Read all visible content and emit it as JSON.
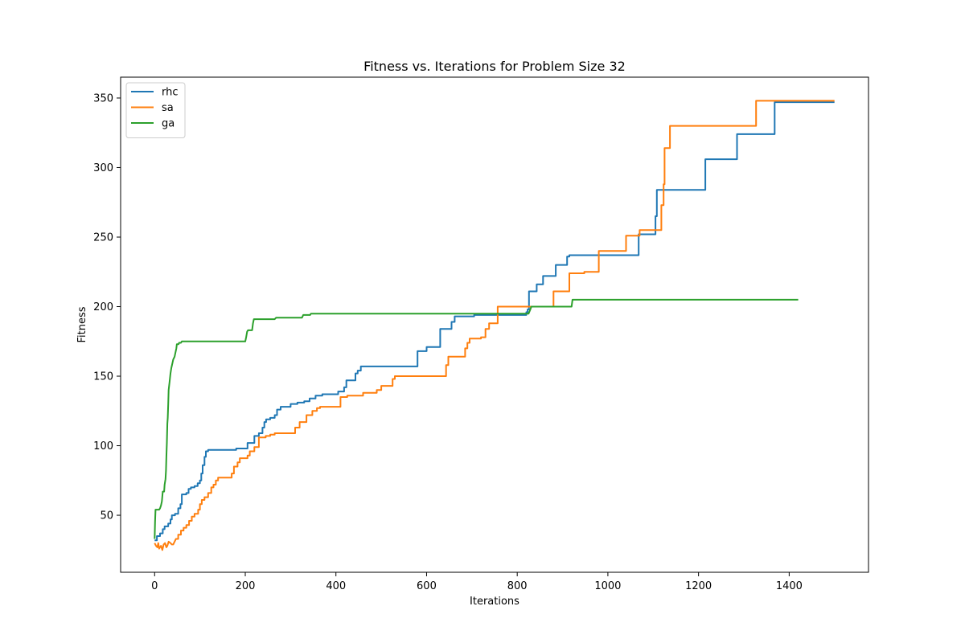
{
  "chart_data": {
    "type": "line",
    "title": "Fitness vs. Iterations for Problem Size 32",
    "xlabel": "Iterations",
    "ylabel": "Fitness",
    "xlim": [
      -75,
      1575
    ],
    "ylim": [
      9,
      365
    ],
    "xticks": [
      0,
      200,
      400,
      600,
      800,
      1000,
      1200,
      1400
    ],
    "yticks": [
      50,
      100,
      150,
      200,
      250,
      300,
      350
    ],
    "grid": false,
    "legend_position": "top-left",
    "series": [
      {
        "name": "rhc",
        "color": "#1f77b4",
        "points": [
          [
            0,
            32
          ],
          [
            5,
            32
          ],
          [
            5,
            35
          ],
          [
            12,
            35
          ],
          [
            12,
            37
          ],
          [
            18,
            37
          ],
          [
            18,
            40
          ],
          [
            22,
            40
          ],
          [
            22,
            42
          ],
          [
            30,
            42
          ],
          [
            30,
            44
          ],
          [
            35,
            44
          ],
          [
            35,
            47
          ],
          [
            38,
            47
          ],
          [
            38,
            50
          ],
          [
            45,
            50
          ],
          [
            45,
            51
          ],
          [
            52,
            51
          ],
          [
            52,
            55
          ],
          [
            57,
            55
          ],
          [
            57,
            58
          ],
          [
            60,
            58
          ],
          [
            60,
            65
          ],
          [
            70,
            65
          ],
          [
            70,
            66
          ],
          [
            75,
            66
          ],
          [
            75,
            69
          ],
          [
            80,
            69
          ],
          [
            80,
            70
          ],
          [
            88,
            70
          ],
          [
            88,
            71
          ],
          [
            95,
            71
          ],
          [
            95,
            73
          ],
          [
            100,
            73
          ],
          [
            100,
            75
          ],
          [
            103,
            75
          ],
          [
            103,
            80
          ],
          [
            106,
            80
          ],
          [
            106,
            86
          ],
          [
            110,
            86
          ],
          [
            110,
            92
          ],
          [
            113,
            92
          ],
          [
            113,
            96
          ],
          [
            118,
            96
          ],
          [
            118,
            97
          ],
          [
            180,
            97
          ],
          [
            180,
            98
          ],
          [
            205,
            98
          ],
          [
            205,
            102
          ],
          [
            220,
            102
          ],
          [
            220,
            107
          ],
          [
            230,
            107
          ],
          [
            230,
            109
          ],
          [
            238,
            109
          ],
          [
            238,
            113
          ],
          [
            242,
            113
          ],
          [
            242,
            117
          ],
          [
            246,
            117
          ],
          [
            246,
            119
          ],
          [
            255,
            119
          ],
          [
            255,
            120
          ],
          [
            265,
            120
          ],
          [
            265,
            122
          ],
          [
            270,
            122
          ],
          [
            270,
            126
          ],
          [
            278,
            126
          ],
          [
            278,
            128
          ],
          [
            300,
            128
          ],
          [
            300,
            130
          ],
          [
            315,
            130
          ],
          [
            315,
            131
          ],
          [
            330,
            131
          ],
          [
            330,
            132
          ],
          [
            342,
            132
          ],
          [
            342,
            134
          ],
          [
            355,
            134
          ],
          [
            355,
            136
          ],
          [
            370,
            136
          ],
          [
            370,
            137
          ],
          [
            405,
            137
          ],
          [
            405,
            139
          ],
          [
            418,
            139
          ],
          [
            418,
            142
          ],
          [
            423,
            142
          ],
          [
            423,
            147
          ],
          [
            443,
            147
          ],
          [
            443,
            152
          ],
          [
            448,
            152
          ],
          [
            448,
            154
          ],
          [
            455,
            154
          ],
          [
            455,
            157
          ],
          [
            580,
            157
          ],
          [
            580,
            168
          ],
          [
            600,
            168
          ],
          [
            600,
            171
          ],
          [
            630,
            171
          ],
          [
            630,
            184
          ],
          [
            655,
            184
          ],
          [
            655,
            189
          ],
          [
            662,
            189
          ],
          [
            662,
            193
          ],
          [
            705,
            193
          ],
          [
            705,
            194
          ],
          [
            820,
            194
          ],
          [
            820,
            196
          ],
          [
            823,
            196
          ],
          [
            823,
            198
          ],
          [
            826,
            198
          ],
          [
            826,
            211
          ],
          [
            843,
            211
          ],
          [
            843,
            216
          ],
          [
            857,
            216
          ],
          [
            857,
            222
          ],
          [
            885,
            222
          ],
          [
            885,
            230
          ],
          [
            910,
            230
          ],
          [
            910,
            236
          ],
          [
            915,
            236
          ],
          [
            915,
            237
          ],
          [
            1068,
            237
          ],
          [
            1068,
            252
          ],
          [
            1105,
            252
          ],
          [
            1105,
            265
          ],
          [
            1108,
            265
          ],
          [
            1108,
            284
          ],
          [
            1215,
            284
          ],
          [
            1215,
            306
          ],
          [
            1285,
            306
          ],
          [
            1285,
            324
          ],
          [
            1368,
            324
          ],
          [
            1368,
            347
          ],
          [
            1500,
            347
          ]
        ]
      },
      {
        "name": "sa",
        "color": "#ff7f0e",
        "points": [
          [
            0,
            30
          ],
          [
            3,
            28
          ],
          [
            6,
            27
          ],
          [
            8,
            30
          ],
          [
            10,
            26
          ],
          [
            14,
            28
          ],
          [
            17,
            25
          ],
          [
            20,
            29
          ],
          [
            23,
            30
          ],
          [
            26,
            27
          ],
          [
            28,
            28
          ],
          [
            31,
            31
          ],
          [
            35,
            30
          ],
          [
            38,
            29
          ],
          [
            41,
            29
          ],
          [
            44,
            31
          ],
          [
            47,
            33
          ],
          [
            52,
            33
          ],
          [
            52,
            36
          ],
          [
            58,
            36
          ],
          [
            58,
            39
          ],
          [
            64,
            39
          ],
          [
            64,
            41
          ],
          [
            70,
            41
          ],
          [
            70,
            43
          ],
          [
            76,
            43
          ],
          [
            76,
            46
          ],
          [
            82,
            46
          ],
          [
            82,
            49
          ],
          [
            88,
            49
          ],
          [
            88,
            51
          ],
          [
            96,
            51
          ],
          [
            96,
            54
          ],
          [
            100,
            54
          ],
          [
            100,
            58
          ],
          [
            104,
            58
          ],
          [
            104,
            61
          ],
          [
            110,
            61
          ],
          [
            110,
            63
          ],
          [
            118,
            63
          ],
          [
            118,
            66
          ],
          [
            125,
            66
          ],
          [
            125,
            70
          ],
          [
            130,
            70
          ],
          [
            130,
            72
          ],
          [
            135,
            72
          ],
          [
            135,
            75
          ],
          [
            140,
            75
          ],
          [
            140,
            77
          ],
          [
            170,
            77
          ],
          [
            170,
            80
          ],
          [
            175,
            80
          ],
          [
            175,
            85
          ],
          [
            183,
            85
          ],
          [
            183,
            88
          ],
          [
            188,
            88
          ],
          [
            188,
            91
          ],
          [
            205,
            91
          ],
          [
            205,
            93
          ],
          [
            210,
            93
          ],
          [
            210,
            96
          ],
          [
            220,
            96
          ],
          [
            220,
            99
          ],
          [
            230,
            99
          ],
          [
            230,
            106
          ],
          [
            245,
            106
          ],
          [
            245,
            107
          ],
          [
            255,
            107
          ],
          [
            255,
            108
          ],
          [
            265,
            108
          ],
          [
            265,
            109
          ],
          [
            310,
            109
          ],
          [
            310,
            113
          ],
          [
            320,
            113
          ],
          [
            320,
            117
          ],
          [
            335,
            117
          ],
          [
            335,
            122
          ],
          [
            348,
            122
          ],
          [
            348,
            125
          ],
          [
            358,
            125
          ],
          [
            358,
            127
          ],
          [
            365,
            127
          ],
          [
            365,
            128
          ],
          [
            410,
            128
          ],
          [
            410,
            135
          ],
          [
            425,
            135
          ],
          [
            425,
            136
          ],
          [
            460,
            136
          ],
          [
            460,
            138
          ],
          [
            490,
            138
          ],
          [
            490,
            140
          ],
          [
            500,
            140
          ],
          [
            500,
            143
          ],
          [
            525,
            143
          ],
          [
            525,
            148
          ],
          [
            530,
            148
          ],
          [
            530,
            150
          ],
          [
            643,
            150
          ],
          [
            643,
            158
          ],
          [
            648,
            158
          ],
          [
            648,
            164
          ],
          [
            685,
            164
          ],
          [
            685,
            170
          ],
          [
            690,
            170
          ],
          [
            690,
            174
          ],
          [
            695,
            174
          ],
          [
            695,
            177
          ],
          [
            720,
            177
          ],
          [
            720,
            178
          ],
          [
            730,
            178
          ],
          [
            730,
            184
          ],
          [
            738,
            184
          ],
          [
            738,
            188
          ],
          [
            757,
            188
          ],
          [
            757,
            200
          ],
          [
            880,
            200
          ],
          [
            880,
            211
          ],
          [
            915,
            211
          ],
          [
            915,
            224
          ],
          [
            948,
            224
          ],
          [
            948,
            225
          ],
          [
            980,
            225
          ],
          [
            980,
            240
          ],
          [
            1040,
            240
          ],
          [
            1040,
            251
          ],
          [
            1070,
            251
          ],
          [
            1070,
            255
          ],
          [
            1118,
            255
          ],
          [
            1118,
            273
          ],
          [
            1123,
            273
          ],
          [
            1123,
            288
          ],
          [
            1125,
            288
          ],
          [
            1125,
            314
          ],
          [
            1137,
            314
          ],
          [
            1137,
            330
          ],
          [
            1327,
            330
          ],
          [
            1327,
            348
          ],
          [
            1500,
            348
          ]
        ]
      },
      {
        "name": "ga",
        "color": "#2ca02c",
        "points": [
          [
            0,
            33
          ],
          [
            1,
            45
          ],
          [
            2,
            54
          ],
          [
            10,
            54
          ],
          [
            12,
            55
          ],
          [
            14,
            57
          ],
          [
            16,
            60
          ],
          [
            18,
            67
          ],
          [
            21,
            67
          ],
          [
            22,
            72
          ],
          [
            24,
            76
          ],
          [
            25,
            82
          ],
          [
            26,
            92
          ],
          [
            27,
            102
          ],
          [
            28,
            116
          ],
          [
            29,
            120
          ],
          [
            30,
            130
          ],
          [
            31,
            140
          ],
          [
            33,
            146
          ],
          [
            35,
            152
          ],
          [
            37,
            156
          ],
          [
            39,
            159
          ],
          [
            41,
            162
          ],
          [
            44,
            164
          ],
          [
            46,
            167
          ],
          [
            48,
            170
          ],
          [
            49,
            173
          ],
          [
            53,
            173
          ],
          [
            54,
            174
          ],
          [
            58,
            174
          ],
          [
            60,
            175
          ],
          [
            200,
            175
          ],
          [
            202,
            178
          ],
          [
            204,
            182
          ],
          [
            206,
            183
          ],
          [
            215,
            183
          ],
          [
            217,
            188
          ],
          [
            219,
            191
          ],
          [
            265,
            191
          ],
          [
            268,
            192
          ],
          [
            325,
            192
          ],
          [
            328,
            194
          ],
          [
            343,
            194
          ],
          [
            345,
            195
          ],
          [
            825,
            195
          ],
          [
            829,
            198
          ],
          [
            831,
            200
          ],
          [
            920,
            200
          ],
          [
            922,
            205
          ],
          [
            1420,
            205
          ]
        ]
      }
    ]
  }
}
